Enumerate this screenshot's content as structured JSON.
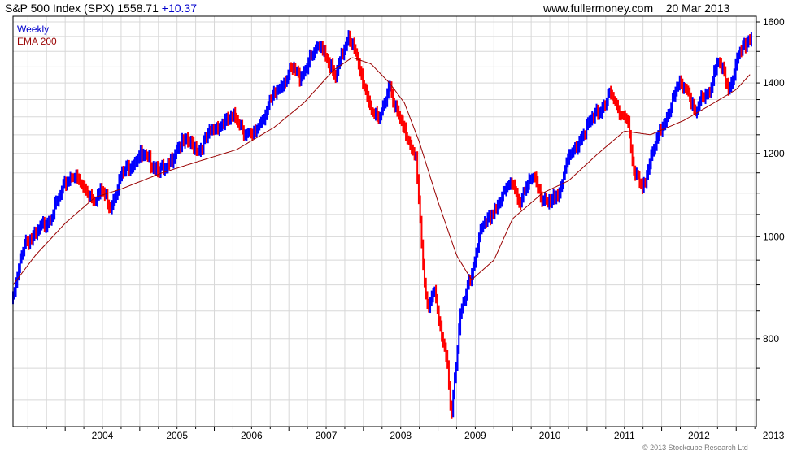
{
  "header": {
    "title": "S&P 500 Index (SPX) 1558.71",
    "change": "+10.37",
    "source": "www.fullermoney.com",
    "date": "20 Mar 2013"
  },
  "copyright": "© 2013 Stockcube Research Ltd",
  "colors": {
    "up": "#0000ff",
    "down": "#ff0000",
    "ema": "#990000",
    "grid": "#d8d8d8",
    "frame": "#000000"
  },
  "chart_data": {
    "type": "line",
    "y_scale": "log",
    "ylim": [
      660,
      1620
    ],
    "yticks": [
      800,
      1000,
      1200,
      1400,
      1600
    ],
    "xlim": [
      2003.3,
      2013.27
    ],
    "xticks": [
      "2004",
      "2005",
      "2006",
      "2007",
      "2008",
      "2009",
      "2010",
      "2011",
      "2012",
      "2013"
    ],
    "grid": true,
    "legend_position": "top-left",
    "series": [
      {
        "name": "Weekly",
        "style": "weekly-bars-blue-up-red-down",
        "x": [
          2003.3,
          2003.45,
          2003.6,
          2003.85,
          2004.0,
          2004.1,
          2004.25,
          2004.4,
          2004.5,
          2004.6,
          2004.75,
          2004.9,
          2005.0,
          2005.2,
          2005.35,
          2005.5,
          2005.65,
          2005.8,
          2006.0,
          2006.3,
          2006.4,
          2006.5,
          2006.7,
          2006.9,
          2007.05,
          2007.15,
          2007.3,
          2007.45,
          2007.55,
          2007.62,
          2007.8,
          2007.88,
          2008.0,
          2008.1,
          2008.2,
          2008.35,
          2008.45,
          2008.55,
          2008.7,
          2008.78,
          2008.83,
          2008.88,
          2008.95,
          2009.02,
          2009.12,
          2009.18,
          2009.3,
          2009.45,
          2009.55,
          2009.75,
          2010.0,
          2010.1,
          2010.3,
          2010.4,
          2010.5,
          2010.6,
          2010.75,
          2010.9,
          2011.1,
          2011.3,
          2011.4,
          2011.55,
          2011.62,
          2011.75,
          2011.85,
          2012.0,
          2012.25,
          2012.35,
          2012.45,
          2012.55,
          2012.65,
          2012.75,
          2012.85,
          2012.9,
          2013.0,
          2013.1,
          2013.21
        ],
        "y": [
          870,
          990,
          1000,
          1060,
          1120,
          1150,
          1110,
          1090,
          1105,
          1070,
          1140,
          1180,
          1195,
          1170,
          1150,
          1220,
          1230,
          1210,
          1270,
          1300,
          1260,
          1240,
          1320,
          1400,
          1440,
          1420,
          1480,
          1520,
          1460,
          1410,
          1560,
          1500,
          1400,
          1330,
          1280,
          1400,
          1310,
          1260,
          1200,
          980,
          880,
          860,
          900,
          820,
          760,
          680,
          840,
          920,
          1000,
          1060,
          1130,
          1080,
          1150,
          1080,
          1070,
          1100,
          1180,
          1240,
          1300,
          1360,
          1330,
          1290,
          1150,
          1120,
          1180,
          1270,
          1400,
          1380,
          1300,
          1360,
          1380,
          1460,
          1420,
          1380,
          1460,
          1510,
          1560
        ]
      },
      {
        "name": "EMA 200",
        "x": [
          2003.3,
          2003.6,
          2004.0,
          2004.4,
          2004.75,
          2005.3,
          2005.8,
          2006.3,
          2006.8,
          2007.2,
          2007.6,
          2007.85,
          2008.1,
          2008.35,
          2008.55,
          2008.75,
          2009.0,
          2009.25,
          2009.45,
          2009.75,
          2010.0,
          2010.4,
          2010.75,
          2011.15,
          2011.5,
          2011.85,
          2012.3,
          2012.7,
          2013.0,
          2013.2
        ],
        "y": [
          900,
          960,
          1030,
          1090,
          1110,
          1150,
          1180,
          1210,
          1270,
          1340,
          1440,
          1480,
          1460,
          1400,
          1340,
          1230,
          1080,
          960,
          910,
          950,
          1040,
          1100,
          1130,
          1200,
          1260,
          1250,
          1290,
          1340,
          1380,
          1430
        ]
      }
    ]
  }
}
